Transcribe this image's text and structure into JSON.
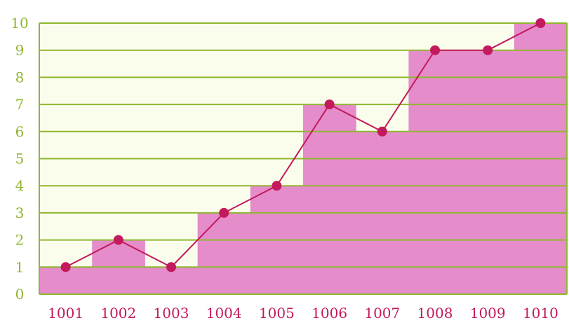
{
  "chart_data": {
    "type": "area",
    "categories": [
      "1001",
      "1002",
      "1003",
      "1004",
      "1005",
      "1006",
      "1007",
      "1008",
      "1009",
      "1010"
    ],
    "series": [
      {
        "values": [
          1,
          2,
          1,
          3,
          4,
          7,
          6,
          9,
          9,
          10
        ]
      }
    ],
    "y_ticks": [
      "0",
      "1",
      "2",
      "3",
      "4",
      "5",
      "6",
      "7",
      "8",
      "9",
      "10"
    ],
    "ylim": [
      0,
      10
    ],
    "grid": true,
    "colors": {
      "plot_background": "#fbfdec",
      "fill": "#e58ccb",
      "line": "#c3195d",
      "point": "#c3195d",
      "grid": "#8fb72f",
      "y_tick_text": "#8fb72f",
      "x_tick_text": "#c3195d"
    }
  }
}
